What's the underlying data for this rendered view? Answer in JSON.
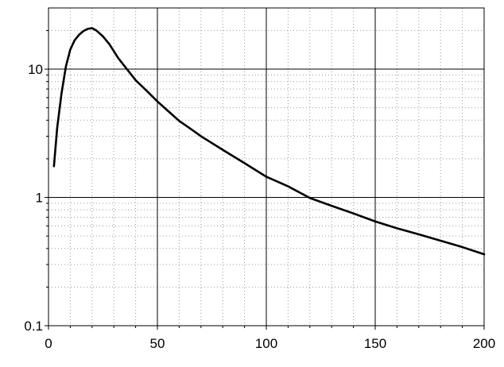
{
  "chart_data": {
    "type": "line",
    "title": "",
    "xlabel": "",
    "ylabel": "",
    "x_scale": "linear",
    "y_scale": "log",
    "xlim": [
      0,
      200
    ],
    "ylim": [
      0.1,
      30
    ],
    "grid": true,
    "legend": "none",
    "x_ticks": [
      {
        "value": 0,
        "label": "0"
      },
      {
        "value": 50,
        "label": "50"
      },
      {
        "value": 100,
        "label": "100"
      },
      {
        "value": 150,
        "label": "150"
      },
      {
        "value": 200,
        "label": "200"
      }
    ],
    "y_ticks": [
      {
        "value": 0.1,
        "label": "0.1"
      },
      {
        "value": 1,
        "label": "1"
      },
      {
        "value": 10,
        "label": "10"
      }
    ],
    "series": [
      {
        "color": "#000000",
        "x": [
          2.5,
          4,
          6,
          8,
          10,
          12,
          14,
          16,
          18,
          20,
          22,
          25,
          28,
          32,
          36,
          40,
          45,
          50,
          55,
          60,
          65,
          70,
          80,
          90,
          100,
          110,
          120,
          130,
          140,
          150,
          160,
          170,
          180,
          190,
          200
        ],
        "y": [
          1.75,
          3.5,
          6.5,
          10.5,
          14.2,
          16.8,
          18.5,
          19.8,
          20.6,
          20.9,
          20.0,
          18.0,
          15.6,
          12.2,
          10.0,
          8.2,
          6.8,
          5.6,
          4.7,
          3.95,
          3.45,
          3.0,
          2.35,
          1.85,
          1.45,
          1.22,
          0.99,
          0.86,
          0.75,
          0.65,
          0.575,
          0.515,
          0.46,
          0.41,
          0.36
        ]
      }
    ]
  }
}
